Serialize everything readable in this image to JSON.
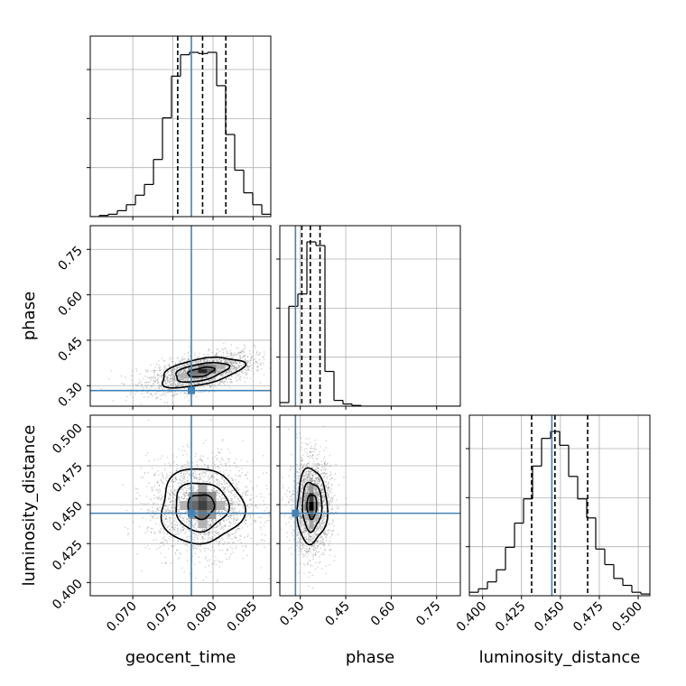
{
  "chart_data": {
    "type": "corner",
    "parameters": [
      "geocent_time",
      "phase",
      "luminosity_distance"
    ],
    "axis_labels": {
      "x": [
        "geocent_time",
        "phase",
        "luminosity_distance"
      ],
      "y": [
        "phase",
        "luminosity_distance"
      ]
    },
    "truths": {
      "geocent_time": 0.0773,
      "phase": 0.284,
      "luminosity_distance": 0.4445
    },
    "colors": {
      "truth": "#4682b4",
      "hist": "#000000",
      "grid": "#b0b0b0",
      "points": "#7f7f7f"
    },
    "grid": true,
    "ranges": {
      "geocent_time": [
        0.0647,
        0.0872
      ],
      "phase": [
        0.2323,
        0.8283
      ],
      "luminosity_distance": [
        0.3915,
        0.5075
      ]
    },
    "ticks": {
      "geocent_time": {
        "values": [
          0.07,
          0.075,
          0.08,
          0.085
        ],
        "labels": [
          "0.070",
          "0.075",
          "0.080",
          "0.085"
        ]
      },
      "phase": {
        "values": [
          0.3,
          0.45,
          0.6,
          0.75
        ],
        "labels": [
          "0.30",
          "0.45",
          "0.60",
          "0.75"
        ]
      },
      "luminosity_distance": {
        "values": [
          0.4,
          0.425,
          0.45,
          0.475,
          0.5
        ],
        "labels": [
          "0.400",
          "0.425",
          "0.450",
          "0.475",
          "0.500"
        ]
      }
    },
    "histograms": {
      "geocent_time": {
        "edges": [
          0.0647,
          0.06583,
          0.06695,
          0.06807,
          0.0692,
          0.07033,
          0.07145,
          0.07258,
          0.0737,
          0.07482,
          0.07595,
          0.07708,
          0.0782,
          0.07933,
          0.08045,
          0.08157,
          0.0827,
          0.08383,
          0.08495,
          0.08608,
          0.0872
        ],
        "counts": [
          0,
          1,
          2,
          5,
          10,
          18,
          27,
          48,
          83,
          118,
          136,
          138,
          137,
          138,
          110,
          69,
          39,
          20,
          10,
          2
        ],
        "quantiles": [
          0.0756,
          0.0787,
          0.0816
        ]
      },
      "phase": {
        "edges": [
          0.2323,
          0.2621,
          0.2919,
          0.3217,
          0.3515,
          0.3813,
          0.4111,
          0.4409,
          0.4707,
          0.5005,
          0.5303,
          0.5601,
          0.5899,
          0.6197,
          0.6495,
          0.6793,
          0.7091,
          0.7389,
          0.7687,
          0.7985,
          0.8283
        ],
        "counts": [
          5,
          138,
          155,
          227,
          222,
          48,
          8,
          3,
          1,
          0,
          0,
          0,
          0,
          0,
          0,
          0,
          0,
          0,
          0,
          0
        ],
        "quantiles": [
          0.305,
          0.333,
          0.365
        ]
      },
      "luminosity_distance": {
        "edges": [
          0.3915,
          0.3973,
          0.4031,
          0.4089,
          0.4147,
          0.4205,
          0.4263,
          0.4321,
          0.4379,
          0.4437,
          0.4495,
          0.4553,
          0.4611,
          0.4669,
          0.4727,
          0.4785,
          0.4843,
          0.4901,
          0.4959,
          0.5017,
          0.5075
        ],
        "counts": [
          2,
          4,
          8,
          15,
          28,
          42,
          56,
          75,
          91,
          95,
          87,
          69,
          56,
          45,
          27,
          18,
          10,
          6,
          2,
          1
        ],
        "quantiles": [
          0.4315,
          0.4465,
          0.4675
        ]
      }
    },
    "scatter": [
      {
        "x": "geocent_time",
        "y": "phase",
        "center": [
          0.0785,
          0.345
        ],
        "spread": [
          0.0033,
          0.032
        ],
        "correlation": 0.5,
        "n": 2000
      },
      {
        "x": "geocent_time",
        "y": "luminosity_distance",
        "center": [
          0.0785,
          0.449
        ],
        "spread": [
          0.0033,
          0.0155
        ],
        "correlation": 0.0,
        "n": 2000
      },
      {
        "x": "phase",
        "y": "luminosity_distance",
        "center": [
          0.338,
          0.449
        ],
        "spread": [
          0.032,
          0.0155
        ],
        "correlation": 0.0,
        "n": 2000
      }
    ],
    "density_levels": [
      {
        "x": "geocent_time",
        "y": "phase",
        "center": [
          0.0787,
          0.348
        ],
        "cells": [
          [
            0,
            0,
            0.85
          ],
          [
            1,
            0,
            0.6
          ],
          [
            -1,
            0,
            0.55
          ],
          [
            0,
            1,
            0.5
          ],
          [
            0,
            -1,
            0.45
          ],
          [
            1,
            1,
            0.45
          ],
          [
            -1,
            -1,
            0.5
          ],
          [
            2,
            1,
            0.3
          ],
          [
            -2,
            -1,
            0.3
          ],
          [
            1,
            -1,
            0.2
          ],
          [
            -1,
            1,
            0.25
          ]
        ],
        "cell": [
          0.001125,
          0.0149
        ]
      },
      {
        "x": "geocent_time",
        "y": "luminosity_distance",
        "center": [
          0.0787,
          0.4495
        ],
        "cells": [
          [
            0,
            0,
            0.75
          ],
          [
            0,
            1,
            0.65
          ],
          [
            0,
            -1,
            0.55
          ],
          [
            1,
            0,
            0.6
          ],
          [
            -1,
            0,
            0.6
          ],
          [
            1,
            1,
            0.45
          ],
          [
            -1,
            1,
            0.45
          ],
          [
            1,
            -1,
            0.4
          ],
          [
            -1,
            -1,
            0.4
          ],
          [
            0,
            2,
            0.35
          ],
          [
            0,
            -2,
            0.3
          ],
          [
            2,
            0,
            0.3
          ],
          [
            -2,
            0,
            0.3
          ]
        ],
        "cell": [
          0.001125,
          0.0058
        ]
      },
      {
        "x": "phase",
        "y": "luminosity_distance",
        "center": [
          0.3365,
          0.449
        ],
        "cells": [
          [
            0,
            0,
            1.0
          ],
          [
            0,
            1,
            0.75
          ],
          [
            0,
            -1,
            0.65
          ],
          [
            -1,
            0,
            0.55
          ],
          [
            1,
            0,
            0.5
          ],
          [
            0,
            2,
            0.4
          ],
          [
            0,
            -2,
            0.35
          ],
          [
            -1,
            1,
            0.35
          ],
          [
            -1,
            -1,
            0.3
          ],
          [
            1,
            1,
            0.3
          ],
          [
            1,
            -1,
            0.3
          ]
        ],
        "cell": [
          0.0149,
          0.0058
        ]
      }
    ]
  }
}
